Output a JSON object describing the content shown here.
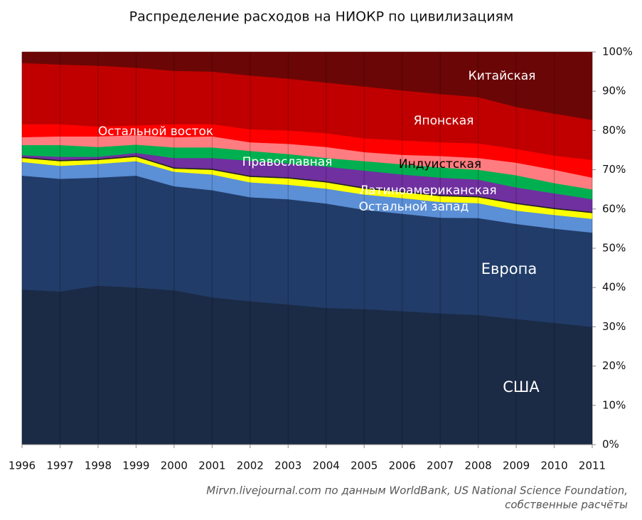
{
  "chart_data": {
    "type": "stacked-area",
    "title": "Распределение расходов на НИОКР по цивилизациям",
    "x": [
      1996,
      1997,
      1998,
      1999,
      2000,
      2001,
      2002,
      2003,
      2004,
      2005,
      2006,
      2007,
      2008,
      2009,
      2010,
      2011
    ],
    "xlim": [
      1996,
      2011
    ],
    "ylim": [
      0,
      100
    ],
    "yticks": [
      {
        "value": 0,
        "label": "0%"
      },
      {
        "value": 10,
        "label": "10%"
      },
      {
        "value": 20,
        "label": "20%"
      },
      {
        "value": 30,
        "label": "30%"
      },
      {
        "value": 40,
        "label": "40%"
      },
      {
        "value": 50,
        "label": "50%"
      },
      {
        "value": 60,
        "label": "60%"
      },
      {
        "value": 70,
        "label": "70%"
      },
      {
        "value": 80,
        "label": "80%"
      },
      {
        "value": 90,
        "label": "90%"
      },
      {
        "value": 100,
        "label": "100%"
      }
    ],
    "series": [
      {
        "name": "США",
        "color": "#1b2a45",
        "values": [
          39.5,
          39,
          40.5,
          40,
          39.3,
          37.5,
          36.5,
          35.7,
          34.8,
          34.5,
          34,
          33.4,
          33,
          32,
          31,
          30
        ]
      },
      {
        "name": "Европа",
        "color": "#213c68",
        "values": [
          29,
          28.7,
          27.5,
          28.5,
          26.5,
          27.3,
          26.5,
          26.8,
          26.6,
          25.3,
          24.8,
          24.4,
          24.7,
          24.2,
          24,
          24
        ]
      },
      {
        "name": "Остальной запад",
        "color": "#5b8fd6",
        "values": [
          3.5,
          3.3,
          3.5,
          3.7,
          3.7,
          4,
          3.8,
          3.7,
          3.8,
          3.9,
          4,
          4,
          3.8,
          3.4,
          3.5,
          3.5
        ]
      },
      {
        "color": "#ffff00",
        "values": [
          1,
          1.2,
          1,
          1.1,
          0.8,
          1.2,
          1.4,
          1.6,
          1.6,
          1.5,
          1.5,
          1.5,
          1.5,
          1.7,
          1.5,
          1.5
        ]
      },
      {
        "color": "#222222",
        "values": [
          0.3,
          0.3,
          0.3,
          0.3,
          0.3,
          0.3,
          0.3,
          0.3,
          0.3,
          0.3,
          0.3,
          0.3,
          0.3,
          0.3,
          0.3,
          0.3
        ]
      },
      {
        "name": "Латиноамериканская",
        "color": "#7030a0",
        "values": [
          0.4,
          0.8,
          0.5,
          0.7,
          2.4,
          2.7,
          3.8,
          3.5,
          3.7,
          4.3,
          4.2,
          4.4,
          4.2,
          3.9,
          3.7,
          3.2
        ]
      },
      {
        "name": "Православная",
        "color": "#00b050",
        "values": [
          2.6,
          3,
          2.5,
          2.1,
          2.7,
          2.7,
          2.5,
          2.4,
          2.2,
          2.4,
          2.6,
          2.6,
          2.5,
          3.1,
          2.6,
          2.5
        ]
      },
      {
        "name": "Индуистская",
        "color": "#ff7c80",
        "values": [
          2,
          2.2,
          2.7,
          2.4,
          2.6,
          2.8,
          2.2,
          2.6,
          2.8,
          2.3,
          2.4,
          2.9,
          3,
          3.2,
          3.4,
          3
        ]
      },
      {
        "name": "Остальной восток",
        "color": "#ff0000",
        "values": [
          3.3,
          3.1,
          2.5,
          2.5,
          3.3,
          3.1,
          3.3,
          3.4,
          3.5,
          3.5,
          3.7,
          3.5,
          3.7,
          3.5,
          3.6,
          4.5
        ]
      },
      {
        "name": "Японская",
        "color": "#c00000",
        "values": [
          15.6,
          15.2,
          15.5,
          14.7,
          13.6,
          13.4,
          13.7,
          13.2,
          12.9,
          13.2,
          12.7,
          12.3,
          11.8,
          10.7,
          10.7,
          10.2
        ]
      },
      {
        "name": "Китайская",
        "color": "#6b0606",
        "values": [
          2.8,
          3.2,
          3.5,
          4,
          4.8,
          5,
          6,
          6.8,
          7.8,
          8.8,
          9.8,
          10.7,
          11.5,
          14,
          15.7,
          17.3
        ]
      }
    ],
    "source": [
      "Mirvn.livejournal.com по данным WorldBank, US National Science Foundation,",
      "собственные расчёты"
    ]
  }
}
